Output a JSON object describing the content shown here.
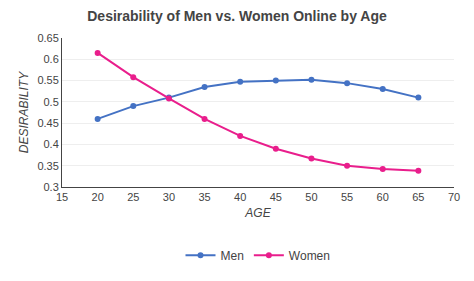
{
  "chart_data": {
    "type": "line",
    "title": "Desirability of Men vs. Women Online by Age",
    "xlabel": "AGE",
    "ylabel": "DESIRABILITY",
    "x": [
      20,
      25,
      30,
      35,
      40,
      45,
      50,
      55,
      60,
      65
    ],
    "series": [
      {
        "name": "Men",
        "color": "#4472C4",
        "values": [
          0.46,
          0.49,
          0.51,
          0.535,
          0.547,
          0.55,
          0.552,
          0.544,
          0.53,
          0.51
        ]
      },
      {
        "name": "Women",
        "color": "#E91E8C",
        "values": [
          0.615,
          0.558,
          0.508,
          0.46,
          0.42,
          0.39,
          0.367,
          0.35,
          0.342,
          0.338
        ]
      }
    ],
    "xlim": [
      15,
      70
    ],
    "xticks": [
      15,
      20,
      25,
      30,
      35,
      40,
      45,
      50,
      55,
      60,
      65,
      70
    ],
    "ylim": [
      0.3,
      0.65
    ],
    "yticks": [
      0.3,
      0.35,
      0.4,
      0.45,
      0.5,
      0.55,
      0.6,
      0.65
    ],
    "grid": "y",
    "legend": "bottom",
    "marker": "circle"
  }
}
